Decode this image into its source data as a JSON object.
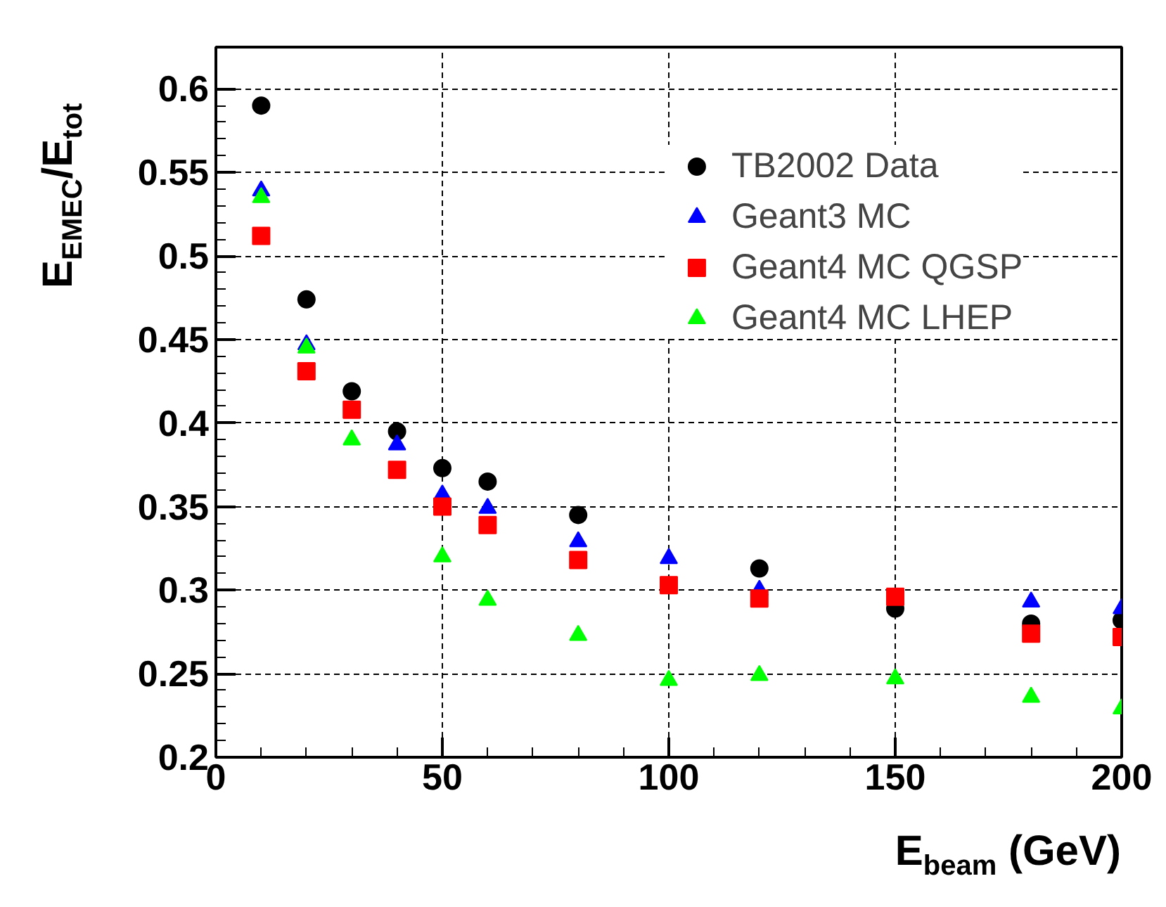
{
  "chart_data": {
    "type": "scatter",
    "xlabel": "E$_{beam}$ (GeV)",
    "ylabel": "E$_{EMEC}$/E$_{tot}$",
    "x": [
      10,
      20,
      30,
      40,
      50,
      60,
      80,
      100,
      120,
      150,
      180,
      200
    ],
    "series": [
      {
        "name": "TB2002 Data",
        "color": "#000000",
        "marker": "circle",
        "values": [
          0.59,
          0.474,
          0.419,
          0.395,
          0.373,
          0.365,
          0.345,
          null,
          0.313,
          0.289,
          0.28,
          0.282
        ]
      },
      {
        "name": "Geant3 MC",
        "color": "#0000ff",
        "marker": "triangle",
        "values": [
          0.539,
          0.447,
          null,
          0.387,
          0.357,
          0.349,
          0.329,
          0.319,
          0.3,
          null,
          0.293,
          0.289
        ]
      },
      {
        "name": "Geant4 MC QGSP",
        "color": "#ff0000",
        "marker": "square",
        "values": [
          0.512,
          0.431,
          0.408,
          0.372,
          0.35,
          0.339,
          0.318,
          0.303,
          0.295,
          0.296,
          0.274,
          0.272
        ]
      },
      {
        "name": "Geant4 MC LHEP",
        "color": "#00ff00",
        "marker": "triangle",
        "values": [
          0.535,
          0.445,
          0.39,
          null,
          0.32,
          0.294,
          0.273,
          0.246,
          0.249,
          0.247,
          0.236,
          0.229
        ]
      }
    ],
    "xlim": [
      0,
      200
    ],
    "ylim": [
      0.2,
      0.625
    ],
    "xticks": [
      0,
      50,
      100,
      150,
      200
    ],
    "yticks": [
      0.2,
      0.25,
      0.3,
      0.35,
      0.4,
      0.45,
      0.5,
      0.55,
      0.6
    ],
    "grid": true,
    "legend": "top right"
  }
}
